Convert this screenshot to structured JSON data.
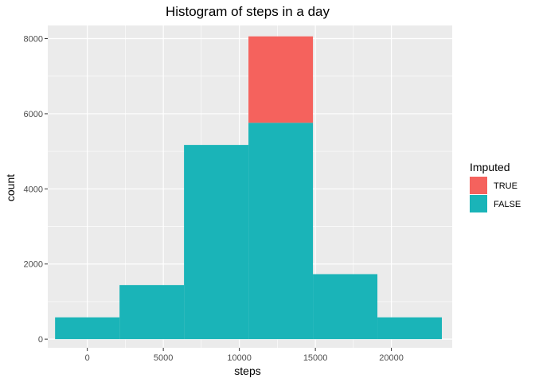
{
  "chart_data": {
    "type": "bar",
    "title": "Histogram of steps in a day",
    "xlabel": "steps",
    "ylabel": "count",
    "xlim": [
      -2600,
      24000
    ],
    "ylim": [
      -230,
      8350
    ],
    "x_ticks": [
      0,
      5000,
      10000,
      15000,
      20000
    ],
    "y_ticks": [
      0,
      2000,
      4000,
      6000,
      8000
    ],
    "grid": true,
    "legend_position": "right",
    "legend_title": "Imputed",
    "bins": [
      {
        "x_start": -2120,
        "x_end": 2120
      },
      {
        "x_start": 2120,
        "x_end": 6360
      },
      {
        "x_start": 6360,
        "x_end": 10600
      },
      {
        "x_start": 10600,
        "x_end": 14840
      },
      {
        "x_start": 14840,
        "x_end": 19080
      },
      {
        "x_start": 19080,
        "x_end": 23320
      }
    ],
    "series": [
      {
        "name": "FALSE",
        "color": "#1AB4B8",
        "values": [
          580,
          1440,
          5170,
          5760,
          1730,
          580
        ]
      },
      {
        "name": "TRUE",
        "color": "#F5625D",
        "values": [
          0,
          0,
          0,
          2300,
          0,
          0
        ]
      }
    ],
    "legend_order": [
      "TRUE",
      "FALSE"
    ],
    "panel_background": "#EBEBEB",
    "gridline_color": "#FFFFFF"
  }
}
